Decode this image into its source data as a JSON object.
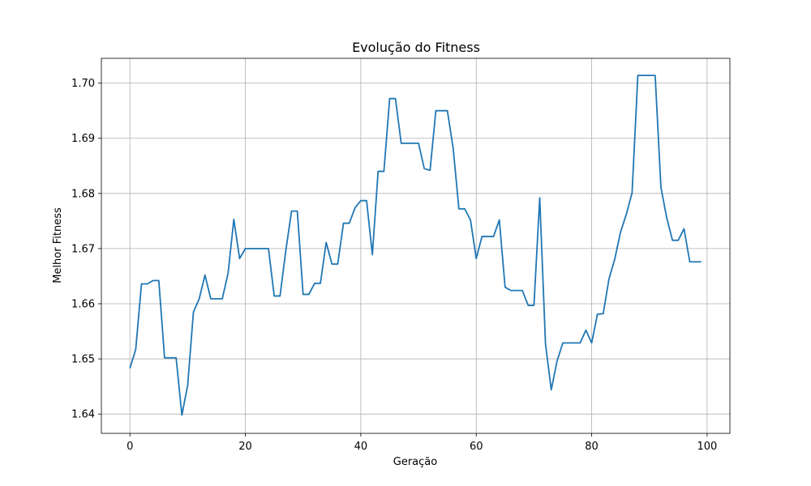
{
  "chart_data": {
    "type": "line",
    "title": "Evolução do Fitness",
    "xlabel": "Geração",
    "ylabel": "Melhor Fitness",
    "xlim": [
      -4.95,
      103.95
    ],
    "ylim": [
      1.6365,
      1.7045
    ],
    "xticks": [
      0,
      20,
      40,
      60,
      80,
      100
    ],
    "xtick_labels": [
      "0",
      "20",
      "40",
      "60",
      "80",
      "100"
    ],
    "yticks": [
      1.64,
      1.65,
      1.66,
      1.67,
      1.68,
      1.69,
      1.7
    ],
    "ytick_labels": [
      "1.64",
      "1.65",
      "1.66",
      "1.67",
      "1.68",
      "1.69",
      "1.70"
    ],
    "grid": true,
    "series": [
      {
        "color": "#1f77b4",
        "x": [
          0,
          1,
          2,
          3,
          4,
          5,
          6,
          7,
          8,
          9,
          10,
          11,
          12,
          13,
          14,
          15,
          16,
          17,
          18,
          19,
          20,
          21,
          22,
          23,
          24,
          25,
          26,
          27,
          28,
          29,
          30,
          31,
          32,
          33,
          34,
          35,
          36,
          37,
          38,
          39,
          40,
          41,
          42,
          43,
          44,
          45,
          46,
          47,
          48,
          49,
          50,
          51,
          52,
          53,
          54,
          55,
          56,
          57,
          58,
          59,
          60,
          61,
          62,
          63,
          64,
          65,
          66,
          67,
          68,
          69,
          70,
          71,
          72,
          73,
          74,
          75,
          76,
          77,
          78,
          79,
          80,
          81,
          82,
          83,
          84,
          85,
          86,
          87,
          88,
          89,
          90,
          91,
          92,
          93,
          94,
          95,
          96,
          97,
          98,
          99
        ],
        "y": [
          1.6483,
          1.6517,
          1.6636,
          1.6636,
          1.6642,
          1.6642,
          1.6502,
          1.6502,
          1.6502,
          1.6398,
          1.6452,
          1.6585,
          1.6609,
          1.6652,
          1.6609,
          1.6609,
          1.6609,
          1.6655,
          1.6753,
          1.6682,
          1.67,
          1.67,
          1.67,
          1.67,
          1.67,
          1.6614,
          1.6614,
          1.6696,
          1.6768,
          1.6768,
          1.6617,
          1.6617,
          1.6637,
          1.6637,
          1.6711,
          1.6672,
          1.6672,
          1.6746,
          1.6746,
          1.6774,
          1.6787,
          1.6787,
          1.6689,
          1.684,
          1.684,
          1.6972,
          1.6972,
          1.6891,
          1.6891,
          1.6891,
          1.6891,
          1.6845,
          1.6842,
          1.695,
          1.695,
          1.695,
          1.6882,
          1.6772,
          1.6772,
          1.6752,
          1.6682,
          1.6722,
          1.6722,
          1.6722,
          1.6752,
          1.663,
          1.6624,
          1.6624,
          1.6624,
          1.6597,
          1.6597,
          1.6792,
          1.6527,
          1.6444,
          1.6496,
          1.6529,
          1.6529,
          1.6529,
          1.6529,
          1.6552,
          1.6529,
          1.6581,
          1.6582,
          1.6645,
          1.6681,
          1.673,
          1.6762,
          1.6801,
          1.7014,
          1.7014,
          1.7014,
          1.7014,
          1.6811,
          1.6756,
          1.6715,
          1.6715,
          1.6736,
          1.6676,
          1.6676,
          1.6676
        ]
      }
    ]
  }
}
